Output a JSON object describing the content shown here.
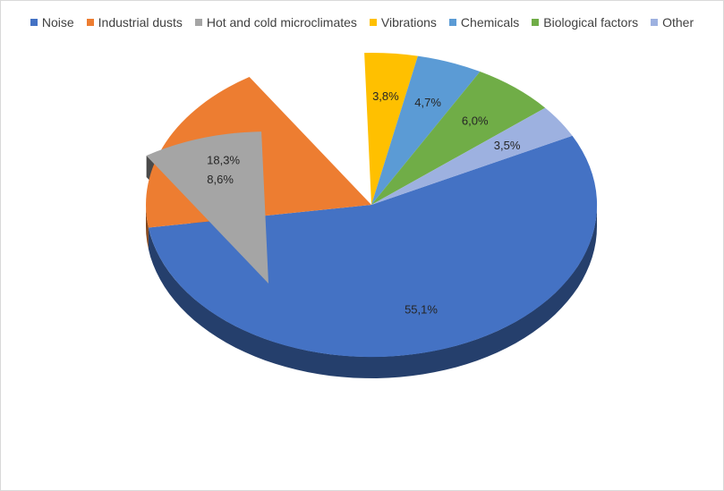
{
  "chart_data": {
    "type": "pie",
    "title": "",
    "slices": [
      {
        "name": "Noise",
        "value": 55.1,
        "label": "55,1%",
        "color": "#4472C4",
        "exploded": false
      },
      {
        "name": "Industrial dusts",
        "value": 18.3,
        "label": "18,3%",
        "color": "#ED7D31",
        "exploded": false
      },
      {
        "name": "Hot and cold microclimates",
        "value": 8.6,
        "label": "8,6%",
        "color": "#A5A5A5",
        "exploded": true
      },
      {
        "name": "Vibrations",
        "value": 3.8,
        "label": "3,8%",
        "color": "#FFC000",
        "exploded": false
      },
      {
        "name": "Chemicals",
        "value": 4.7,
        "label": "4,7%",
        "color": "#5B9BD5",
        "exploded": false
      },
      {
        "name": "Biological factors",
        "value": 6.0,
        "label": "6,0%",
        "color": "#70AD47",
        "exploded": false
      },
      {
        "name": "Other",
        "value": 3.5,
        "label": "3,5%",
        "color": "#9DB1E0",
        "exploded": false
      }
    ],
    "legend_position": "top",
    "style": "3d-exploded-pie"
  }
}
